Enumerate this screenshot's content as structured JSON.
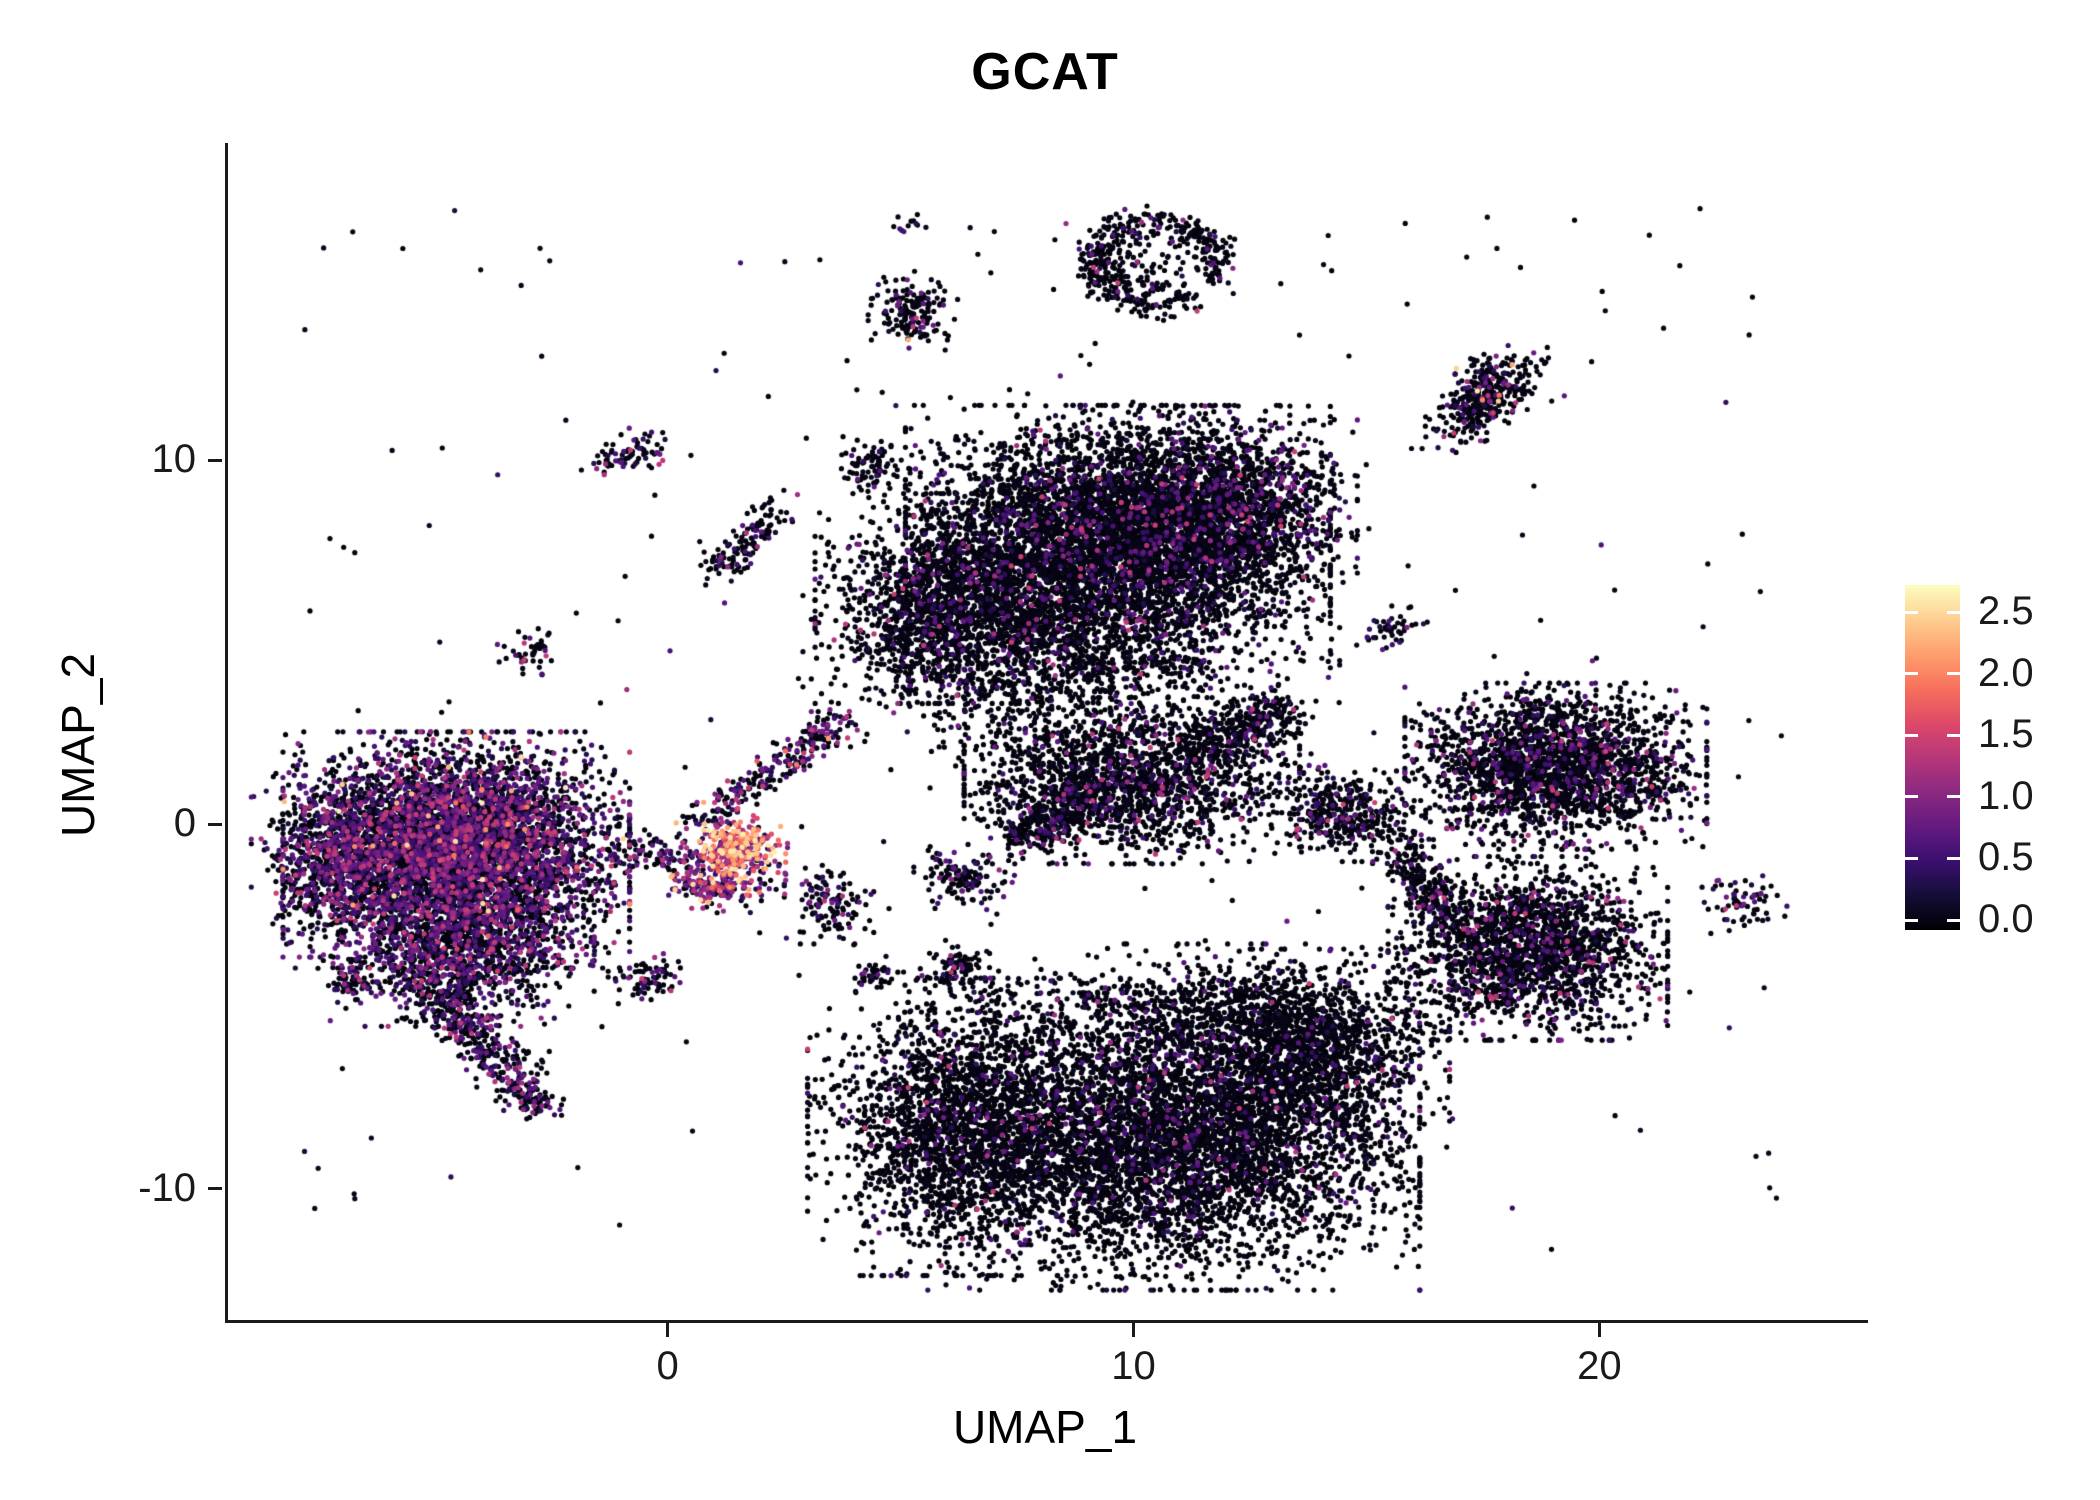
{
  "figure": {
    "background": "#ffffff",
    "axis_color": "#1a1a1a",
    "text_color": "#000000"
  },
  "chart_data": {
    "type": "scatter",
    "title": "GCAT",
    "subtitle": "",
    "xlabel": "UMAP_1",
    "ylabel": "UMAP_2",
    "xlim": [
      -9.5,
      25.7
    ],
    "ylim": [
      -13.6,
      18.7
    ],
    "x_ticks": [
      0,
      10,
      20
    ],
    "y_ticks": [
      -10,
      0,
      10
    ],
    "grid": false,
    "point_radius_px": 2.6,
    "colorbar": {
      "title": "",
      "position": "right",
      "tick_labels": [
        "2.5",
        "2.0",
        "1.5",
        "1.0",
        "0.5",
        "0.0"
      ],
      "tick_values": [
        2.5,
        2.0,
        1.5,
        1.0,
        0.5,
        0.0
      ],
      "limits": [
        0,
        2.72
      ],
      "colormap": "magma",
      "stops": [
        "#000004",
        "#140e36",
        "#3b0f70",
        "#641a80",
        "#8c2981",
        "#b73779",
        "#de4968",
        "#f7705c",
        "#fe9f6d",
        "#fece91",
        "#fcfdbf"
      ]
    },
    "expression_bins": {
      "zero": [
        0,
        0.12
      ],
      "low": [
        0.25,
        0.85
      ],
      "mid": [
        0.85,
        1.5
      ],
      "high": [
        1.55,
        2.65
      ]
    },
    "clusters": [
      {
        "name": "left-main",
        "type": "blob",
        "cx": -4.6,
        "cy": -0.7,
        "sx": 1.55,
        "sy": 1.35,
        "n": 5200,
        "expr": [
          0.52,
          0.34,
          0.13,
          0.01
        ]
      },
      {
        "name": "left-west-edge",
        "type": "blob",
        "cx": -7.2,
        "cy": -1.0,
        "sx": 0.75,
        "sy": 1.1,
        "n": 750,
        "expr": [
          0.55,
          0.33,
          0.12,
          0
        ]
      },
      {
        "name": "left-south-lobe",
        "type": "blob",
        "cx": -4.4,
        "cy": -3.5,
        "sx": 1.15,
        "sy": 0.85,
        "n": 950,
        "expr": [
          0.6,
          0.3,
          0.1,
          0
        ]
      },
      {
        "name": "left-tail",
        "type": "streak",
        "x1": -5.6,
        "y1": -3.9,
        "x2": -3.0,
        "y2": -7.4,
        "w": 0.3,
        "n": 430,
        "expr": [
          0.62,
          0.28,
          0.1,
          0
        ]
      },
      {
        "name": "left-tail-tip",
        "type": "blob",
        "cx": -2.9,
        "cy": -7.6,
        "sx": 0.25,
        "sy": 0.22,
        "n": 60,
        "expr": [
          0.6,
          0.3,
          0.1,
          0
        ]
      },
      {
        "name": "left-small-offshoot",
        "type": "blob",
        "cx": -6.9,
        "cy": -4.3,
        "sx": 0.3,
        "sy": 0.25,
        "n": 70,
        "expr": [
          0.6,
          0.3,
          0.1,
          0
        ]
      },
      {
        "name": "small-above-left",
        "type": "blob",
        "cx": -3.0,
        "cy": 4.7,
        "sx": 0.3,
        "sy": 0.28,
        "n": 45,
        "expr": [
          0.7,
          0.25,
          0.05,
          0
        ]
      },
      {
        "name": "nw-pair-a",
        "type": "blob",
        "cx": -1.3,
        "cy": 10.0,
        "sx": 0.26,
        "sy": 0.2,
        "n": 35,
        "expr": [
          0.6,
          0.3,
          0.1,
          0
        ]
      },
      {
        "name": "nw-pair-b",
        "type": "blob",
        "cx": -0.5,
        "cy": 10.3,
        "sx": 0.3,
        "sy": 0.24,
        "n": 42,
        "expr": [
          0.6,
          0.3,
          0.1,
          0
        ]
      },
      {
        "name": "nw-streak",
        "type": "streak",
        "x1": 1.0,
        "y1": 7.0,
        "x2": 2.2,
        "y2": 8.6,
        "w": 0.24,
        "n": 130,
        "expr": [
          0.8,
          0.15,
          0.05,
          0
        ]
      },
      {
        "name": "hot-core",
        "type": "blob",
        "cx": 1.55,
        "cy": -0.55,
        "sx": 0.4,
        "sy": 0.33,
        "n": 210,
        "expr": [
          0.02,
          0.08,
          0.25,
          0.65
        ]
      },
      {
        "name": "hot-halo",
        "type": "blob",
        "cx": 1.15,
        "cy": -1.1,
        "sx": 0.55,
        "sy": 0.5,
        "n": 260,
        "expr": [
          0.1,
          0.2,
          0.45,
          0.25
        ]
      },
      {
        "name": "hot-tail",
        "type": "streak",
        "x1": 0.4,
        "y1": -1.6,
        "x2": 1.3,
        "y2": -2.1,
        "w": 0.24,
        "n": 90,
        "expr": [
          0.3,
          0.3,
          0.3,
          0.1
        ]
      },
      {
        "name": "connector-streak",
        "type": "streak",
        "x1": 0.6,
        "y1": 0.1,
        "x2": 3.8,
        "y2": 2.9,
        "w": 0.22,
        "n": 260,
        "expr": [
          0.55,
          0.27,
          0.15,
          0.03
        ]
      },
      {
        "name": "left-bridge",
        "type": "streak",
        "x1": -1.2,
        "y1": -0.6,
        "x2": 0.3,
        "y2": -0.9,
        "w": 0.25,
        "n": 90,
        "expr": [
          0.6,
          0.3,
          0.1,
          0
        ]
      },
      {
        "name": "top-main",
        "type": "blob",
        "cx": 9.6,
        "cy": 7.9,
        "sx": 1.9,
        "sy": 1.5,
        "n": 5200,
        "expr": [
          0.9,
          0.08,
          0.02,
          0
        ]
      },
      {
        "name": "top-left-lobe",
        "type": "blob",
        "cx": 6.1,
        "cy": 6.2,
        "sx": 1.25,
        "sy": 1.2,
        "n": 1700,
        "expr": [
          0.9,
          0.08,
          0.02,
          0
        ]
      },
      {
        "name": "top-right-bump",
        "type": "blob",
        "cx": 12.1,
        "cy": 8.6,
        "sx": 1.1,
        "sy": 1.2,
        "n": 1300,
        "expr": [
          0.86,
          0.11,
          0.03,
          0
        ]
      },
      {
        "name": "top-south-fringe",
        "type": "blob",
        "cx": 8.3,
        "cy": 4.7,
        "sx": 2.2,
        "sy": 0.9,
        "n": 800,
        "expr": [
          0.92,
          0.07,
          0.01,
          0
        ]
      },
      {
        "name": "top-west-clump",
        "type": "blob",
        "cx": 4.3,
        "cy": 9.8,
        "sx": 0.35,
        "sy": 0.35,
        "n": 90,
        "expr": [
          0.85,
          0.12,
          0.03,
          0
        ]
      },
      {
        "name": "mid-sparse",
        "type": "blob",
        "cx": 8.6,
        "cy": 3.4,
        "sx": 2.4,
        "sy": 1.2,
        "n": 450,
        "expr": [
          0.93,
          0.06,
          0.01,
          0
        ]
      },
      {
        "name": "wing-main",
        "type": "blob",
        "cx": 9.9,
        "cy": 1.2,
        "sx": 1.5,
        "sy": 0.95,
        "n": 1700,
        "expr": [
          0.88,
          0.09,
          0.03,
          0
        ]
      },
      {
        "name": "wing-right-arm",
        "type": "streak",
        "x1": 11.4,
        "y1": 2.1,
        "x2": 13.2,
        "y2": 3.2,
        "w": 0.35,
        "n": 300,
        "expr": [
          0.85,
          0.12,
          0.03,
          0
        ]
      },
      {
        "name": "wing-left-arm",
        "type": "streak",
        "x1": 8.8,
        "y1": 0.6,
        "x2": 7.3,
        "y2": -0.5,
        "w": 0.3,
        "n": 260,
        "expr": [
          0.85,
          0.12,
          0.03,
          0
        ]
      },
      {
        "name": "cluster-14-0",
        "type": "blob",
        "cx": 14.4,
        "cy": 0.3,
        "sx": 0.65,
        "sy": 0.55,
        "n": 380,
        "expr": [
          0.85,
          0.12,
          0.03,
          0
        ]
      },
      {
        "name": "small-6-neg1",
        "type": "blob",
        "cx": 6.3,
        "cy": -1.5,
        "sx": 0.45,
        "sy": 0.4,
        "n": 130,
        "expr": [
          0.8,
          0.15,
          0.05,
          0
        ]
      },
      {
        "name": "small-6-neg4",
        "type": "blob",
        "cx": 6.2,
        "cy": -3.9,
        "sx": 0.35,
        "sy": 0.3,
        "n": 90,
        "expr": [
          0.8,
          0.15,
          0.05,
          0
        ]
      },
      {
        "name": "small-3-neg2",
        "type": "blob",
        "cx": 3.4,
        "cy": -2.2,
        "sx": 0.4,
        "sy": 0.45,
        "n": 120,
        "expr": [
          0.75,
          0.2,
          0.05,
          0
        ]
      },
      {
        "name": "tiny-4-neg4",
        "type": "blob",
        "cx": 4.4,
        "cy": -4.1,
        "sx": 0.25,
        "sy": 0.2,
        "n": 40,
        "expr": [
          0.8,
          0.15,
          0.05,
          0
        ]
      },
      {
        "name": "small-neg05-neg4",
        "type": "blob",
        "cx": -0.5,
        "cy": -4.2,
        "sx": 0.35,
        "sy": 0.3,
        "n": 75,
        "expr": [
          0.7,
          0.25,
          0.05,
          0
        ]
      },
      {
        "name": "bottom-left-lobe",
        "type": "blob",
        "cx": 6.3,
        "cy": -8.3,
        "sx": 1.4,
        "sy": 1.7,
        "n": 2300,
        "expr": [
          0.94,
          0.05,
          0.01,
          0
        ]
      },
      {
        "name": "bottom-main",
        "type": "blob",
        "cx": 10.8,
        "cy": -8.7,
        "sx": 2.2,
        "sy": 1.7,
        "n": 4800,
        "expr": [
          0.93,
          0.06,
          0.01,
          0
        ]
      },
      {
        "name": "bottom-right-lobe",
        "type": "blob",
        "cx": 13.6,
        "cy": -6.3,
        "sx": 1.3,
        "sy": 1.2,
        "n": 1500,
        "expr": [
          0.92,
          0.07,
          0.01,
          0
        ]
      },
      {
        "name": "bottom-north-fringe",
        "type": "blob",
        "cx": 11.0,
        "cy": -5.2,
        "sx": 2.0,
        "sy": 0.8,
        "n": 650,
        "expr": [
          0.93,
          0.06,
          0.01,
          0
        ]
      },
      {
        "name": "right-mid",
        "type": "blob",
        "cx": 19.0,
        "cy": 1.6,
        "sx": 1.35,
        "sy": 0.95,
        "n": 2300,
        "expr": [
          0.86,
          0.11,
          0.03,
          0
        ]
      },
      {
        "name": "right-low",
        "type": "blob",
        "cx": 18.4,
        "cy": -3.4,
        "sx": 1.25,
        "sy": 1.05,
        "n": 2000,
        "expr": [
          0.88,
          0.09,
          0.03,
          0
        ]
      },
      {
        "name": "right-connector",
        "type": "streak",
        "x1": 15.6,
        "y1": -0.6,
        "x2": 16.6,
        "y2": -2.4,
        "w": 0.3,
        "n": 220,
        "expr": [
          0.9,
          0.08,
          0.02,
          0
        ]
      },
      {
        "name": "small-15-5",
        "type": "blob",
        "cx": 15.4,
        "cy": 5.4,
        "sx": 0.35,
        "sy": 0.28,
        "n": 45,
        "expr": [
          0.75,
          0.2,
          0.05,
          0
        ]
      },
      {
        "name": "topright-diag",
        "type": "streak",
        "x1": 16.9,
        "y1": 10.9,
        "x2": 18.0,
        "y2": 12.6,
        "w": 0.38,
        "n": 380,
        "expr": [
          0.82,
          0.12,
          0.05,
          0.01
        ]
      },
      {
        "name": "top-arc",
        "type": "ring",
        "cx": 10.4,
        "cy": 15.4,
        "rx": 1.35,
        "ry": 1.05,
        "w": 0.22,
        "a1": -30,
        "a2": 310,
        "n": 430,
        "expr": [
          0.88,
          0.09,
          0.03,
          0
        ]
      },
      {
        "name": "top-arc-interior",
        "type": "blob",
        "cx": 10.1,
        "cy": 15.3,
        "sx": 0.6,
        "sy": 0.5,
        "n": 70,
        "expr": [
          0.9,
          0.08,
          0.02,
          0
        ]
      },
      {
        "name": "top-small-5-14",
        "type": "blob",
        "cx": 5.2,
        "cy": 14.1,
        "sx": 0.4,
        "sy": 0.45,
        "n": 170,
        "expr": [
          0.85,
          0.1,
          0.04,
          0.01
        ]
      },
      {
        "name": "tiny-5-16",
        "type": "blob",
        "cx": 5.0,
        "cy": 16.4,
        "sx": 0.2,
        "sy": 0.15,
        "n": 12,
        "expr": [
          0.7,
          0.3,
          0,
          0
        ]
      },
      {
        "name": "far-right",
        "type": "blob",
        "cx": 23.0,
        "cy": -2.2,
        "sx": 0.4,
        "sy": 0.33,
        "n": 70,
        "expr": [
          0.7,
          0.25,
          0.05,
          0
        ]
      },
      {
        "name": "background-noise",
        "type": "uniform",
        "x0": -8.0,
        "y0": -12.0,
        "x1": 24.0,
        "y1": 17.0,
        "n": 260,
        "expr": [
          0.85,
          0.13,
          0.02,
          0
        ]
      }
    ]
  }
}
